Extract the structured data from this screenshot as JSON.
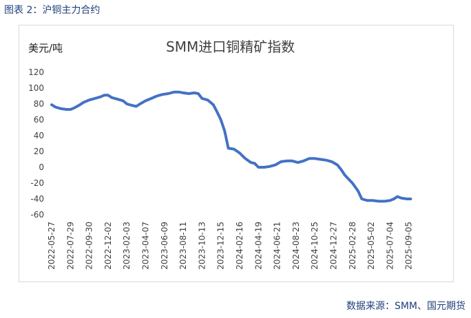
{
  "figure": {
    "caption": "图表 2：沪铜主力合约",
    "source": "数据来源：SMM、国元期货"
  },
  "chart_data": {
    "type": "line",
    "title": "SMM进口铜精矿指数",
    "ylabel": "美元/吨",
    "xlabel": "",
    "ylim": [
      -60,
      120
    ],
    "yticks": [
      "120",
      "100",
      "80",
      "60",
      "40",
      "20",
      "0",
      "-20",
      "-40",
      "-60"
    ],
    "grid": false,
    "legend": "none",
    "line_color": "#4472c4",
    "x_tick_labels": [
      "2022-05-27",
      "2022-07-29",
      "2022-09-30",
      "2022-12-02",
      "2023-02-03",
      "2023-04-07",
      "2023-06-09",
      "2023-08-11",
      "2023-10-13",
      "2023-12-15",
      "2024-02-16",
      "2024-04-19",
      "2024-06-21",
      "2024-08-23",
      "2024-10-25",
      "2024-12-27",
      "2025-02-28",
      "2025-05-02",
      "2025-07-04",
      "2025-09-05"
    ],
    "series": [
      {
        "values": [
          [
            0,
            79
          ],
          [
            0.2,
            76
          ],
          [
            0.5,
            74
          ],
          [
            0.8,
            73
          ],
          [
            1.0,
            73
          ],
          [
            1.2,
            75
          ],
          [
            1.5,
            79
          ],
          [
            1.7,
            82
          ],
          [
            2.0,
            85
          ],
          [
            2.3,
            87
          ],
          [
            2.6,
            89
          ],
          [
            2.8,
            91
          ],
          [
            3.0,
            91
          ],
          [
            3.2,
            88
          ],
          [
            3.5,
            86
          ],
          [
            3.8,
            84
          ],
          [
            4.0,
            80
          ],
          [
            4.3,
            78
          ],
          [
            4.5,
            77
          ],
          [
            4.7,
            80
          ],
          [
            5.0,
            84
          ],
          [
            5.3,
            87
          ],
          [
            5.6,
            90
          ],
          [
            5.9,
            92
          ],
          [
            6.2,
            93
          ],
          [
            6.5,
            95
          ],
          [
            6.8,
            95
          ],
          [
            7.0,
            94
          ],
          [
            7.3,
            93
          ],
          [
            7.6,
            94
          ],
          [
            7.8,
            93
          ],
          [
            8.0,
            87
          ],
          [
            8.3,
            85
          ],
          [
            8.6,
            79
          ],
          [
            8.8,
            70
          ],
          [
            9.0,
            60
          ],
          [
            9.2,
            46
          ],
          [
            9.4,
            24
          ],
          [
            9.7,
            23
          ],
          [
            10.0,
            18
          ],
          [
            10.3,
            11
          ],
          [
            10.6,
            6
          ],
          [
            10.8,
            5
          ],
          [
            11.0,
            0
          ],
          [
            11.3,
            0
          ],
          [
            11.6,
            1
          ],
          [
            11.9,
            3
          ],
          [
            12.2,
            7
          ],
          [
            12.5,
            8
          ],
          [
            12.8,
            8
          ],
          [
            13.1,
            6
          ],
          [
            13.4,
            8
          ],
          [
            13.7,
            11
          ],
          [
            14.0,
            11
          ],
          [
            14.3,
            10
          ],
          [
            14.6,
            9
          ],
          [
            14.9,
            7
          ],
          [
            15.2,
            3
          ],
          [
            15.4,
            -3
          ],
          [
            15.6,
            -10
          ],
          [
            15.8,
            -15
          ],
          [
            16.0,
            -20
          ],
          [
            16.3,
            -30
          ],
          [
            16.5,
            -40
          ],
          [
            16.8,
            -42
          ],
          [
            17.1,
            -42
          ],
          [
            17.4,
            -43
          ],
          [
            17.7,
            -43
          ],
          [
            18.0,
            -42
          ],
          [
            18.2,
            -40
          ],
          [
            18.4,
            -37
          ],
          [
            18.6,
            -39
          ],
          [
            18.9,
            -40
          ],
          [
            19.1,
            -40
          ]
        ]
      }
    ]
  }
}
